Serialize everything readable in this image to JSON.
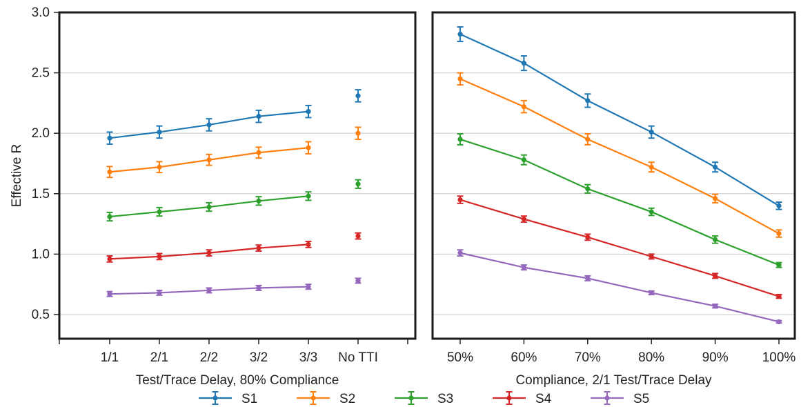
{
  "chart_data": [
    {
      "type": "line",
      "xlabel": "Test/Trace Delay, 80% Compliance",
      "ylabel": "Effective R",
      "ylim": [
        0.3,
        3.0
      ],
      "yticks": [
        "0.5",
        "1.0",
        "1.5",
        "2.0",
        "2.5",
        "3.0"
      ],
      "grid": "horizontal",
      "categories": [
        "1/1",
        "2/1",
        "2/2",
        "3/2",
        "3/3",
        "No TTI"
      ],
      "series": [
        {
          "name": "S1",
          "color": "#1f77b4",
          "values": [
            1.96,
            2.01,
            2.07,
            2.14,
            2.18,
            2.31
          ],
          "errors": [
            0.05,
            0.05,
            0.05,
            0.05,
            0.05,
            0.05
          ]
        },
        {
          "name": "S2",
          "color": "#ff7f0e",
          "values": [
            1.68,
            1.72,
            1.78,
            1.84,
            1.88,
            2.0
          ],
          "errors": [
            0.045,
            0.045,
            0.045,
            0.045,
            0.05,
            0.05
          ]
        },
        {
          "name": "S3",
          "color": "#2ca02c",
          "values": [
            1.31,
            1.35,
            1.39,
            1.44,
            1.48,
            1.58
          ],
          "errors": [
            0.035,
            0.035,
            0.035,
            0.035,
            0.035,
            0.035
          ]
        },
        {
          "name": "S4",
          "color": "#d62728",
          "values": [
            0.96,
            0.98,
            1.01,
            1.05,
            1.08,
            1.15
          ],
          "errors": [
            0.025,
            0.025,
            0.025,
            0.025,
            0.025,
            0.025
          ]
        },
        {
          "name": "S5",
          "color": "#9467bd",
          "values": [
            0.67,
            0.68,
            0.7,
            0.72,
            0.73,
            0.78
          ],
          "errors": [
            0.02,
            0.02,
            0.02,
            0.02,
            0.02,
            0.02
          ]
        }
      ],
      "note": "No TTI points are shown as standalone markers, not connected by lines"
    },
    {
      "type": "line",
      "xlabel": "Compliance, 2/1 Test/Trace Delay",
      "ylabel": "",
      "ylim": [
        0.3,
        3.0
      ],
      "grid": "horizontal",
      "categories": [
        "50%",
        "60%",
        "70%",
        "80%",
        "90%",
        "100%"
      ],
      "series": [
        {
          "name": "S1",
          "color": "#1f77b4",
          "values": [
            2.82,
            2.58,
            2.27,
            2.01,
            1.72,
            1.4
          ],
          "errors": [
            0.06,
            0.06,
            0.055,
            0.05,
            0.04,
            0.03
          ]
        },
        {
          "name": "S2",
          "color": "#ff7f0e",
          "values": [
            2.45,
            2.22,
            1.95,
            1.72,
            1.46,
            1.17
          ],
          "errors": [
            0.05,
            0.05,
            0.045,
            0.04,
            0.035,
            0.03
          ]
        },
        {
          "name": "S3",
          "color": "#2ca02c",
          "values": [
            1.95,
            1.78,
            1.54,
            1.35,
            1.12,
            0.91
          ],
          "errors": [
            0.045,
            0.04,
            0.035,
            0.03,
            0.03,
            0.02
          ]
        },
        {
          "name": "S4",
          "color": "#d62728",
          "values": [
            1.45,
            1.29,
            1.14,
            0.98,
            0.82,
            0.65
          ],
          "errors": [
            0.03,
            0.025,
            0.025,
            0.02,
            0.02,
            0.015
          ]
        },
        {
          "name": "S5",
          "color": "#9467bd",
          "values": [
            1.01,
            0.89,
            0.8,
            0.68,
            0.57,
            0.44
          ],
          "errors": [
            0.025,
            0.02,
            0.02,
            0.015,
            0.015,
            0.01
          ]
        }
      ]
    }
  ],
  "legend": {
    "placement": "bottom-center",
    "items": [
      {
        "label": "S1",
        "color": "#1f77b4"
      },
      {
        "label": "S2",
        "color": "#ff7f0e"
      },
      {
        "label": "S3",
        "color": "#2ca02c"
      },
      {
        "label": "S4",
        "color": "#d62728"
      },
      {
        "label": "S5",
        "color": "#9467bd"
      }
    ]
  }
}
